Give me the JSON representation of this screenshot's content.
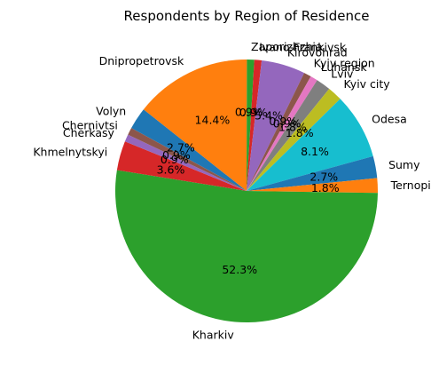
{
  "chart_data": {
    "type": "pie",
    "title": "Respondents by Region of Residence",
    "start_angle_deg": 151.4,
    "direction": "clockwise",
    "slices": [
      {
        "label": "Volyn",
        "value": 2.7,
        "pct_label": "2.7%",
        "color": "#1f77b4"
      },
      {
        "label": "Dnipropetrovsk",
        "value": 14.4,
        "pct_label": "14.4%",
        "color": "#ff7f0e"
      },
      {
        "label": "Zaporizhzhia",
        "value": 0.9,
        "pct_label": "0.9%",
        "color": "#2ca02c"
      },
      {
        "label": "Ivano-Frankivsk",
        "value": 0.9,
        "pct_label": "0.9%",
        "color": "#d62728"
      },
      {
        "label": "Kirovohrad",
        "value": 5.4,
        "pct_label": "5.4%",
        "color": "#9467bd"
      },
      {
        "label": "Kyiv region",
        "value": 0.9,
        "pct_label": "0.9%",
        "color": "#8c564b"
      },
      {
        "label": "Luhansk",
        "value": 0.9,
        "pct_label": "0.9%",
        "color": "#e377c2"
      },
      {
        "label": "Lviv",
        "value": 1.8,
        "pct_label": "1.8%",
        "color": "#7f7f7f"
      },
      {
        "label": "Kyiv city",
        "value": 1.8,
        "pct_label": "1.8%",
        "color": "#bcbd22"
      },
      {
        "label": "Odesa",
        "value": 8.1,
        "pct_label": "8.1%",
        "color": "#17becf"
      },
      {
        "label": "Sumy",
        "value": 2.7,
        "pct_label": "2.7%",
        "color": "#1f77b4"
      },
      {
        "label": "Ternopil",
        "value": 1.8,
        "pct_label": "1.8%",
        "color": "#ff7f0e"
      },
      {
        "label": "Kharkiv",
        "value": 52.3,
        "pct_label": "52.3%",
        "color": "#2ca02c"
      },
      {
        "label": "Khmelnytskyi",
        "value": 3.6,
        "pct_label": "3.6%",
        "color": "#d62728"
      },
      {
        "label": "Cherkasy",
        "value": 0.9,
        "pct_label": "0.9%",
        "color": "#9467bd"
      },
      {
        "label": "Chernivtsi",
        "value": 0.9,
        "pct_label": "0.9%",
        "color": "#8c564b"
      }
    ]
  }
}
